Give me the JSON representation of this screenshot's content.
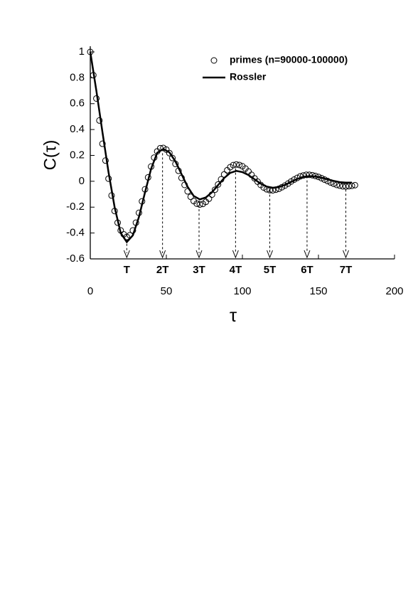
{
  "chart_data": {
    "type": "scatter-line",
    "x_label": "τ",
    "y_label": "C(τ)",
    "xlim": [
      0,
      200
    ],
    "ylim": [
      -0.6,
      1
    ],
    "xticks": [
      0,
      50,
      100,
      150,
      200
    ],
    "yticks": [
      1,
      0.8,
      0.6,
      0.4,
      0.2,
      0,
      -0.2,
      -0.4,
      -0.6
    ],
    "legend": "upper right",
    "series": [
      {
        "name": "primes (n=90000-100000)",
        "style": "circles",
        "color": "#000000",
        "x": [
          0,
          2,
          4,
          6,
          8,
          10,
          12,
          14,
          16,
          18,
          20,
          22,
          24,
          26,
          28,
          30,
          32,
          34,
          36,
          38,
          40,
          42,
          44,
          46,
          48,
          50,
          52,
          54,
          56,
          58,
          60,
          62,
          64,
          66,
          68,
          70,
          72,
          74,
          76,
          78,
          80,
          82,
          84,
          86,
          88,
          90,
          92,
          94,
          96,
          98,
          100,
          102,
          104,
          106,
          108,
          110,
          112,
          114,
          116,
          118,
          120,
          122,
          124,
          126,
          128,
          130,
          132,
          134,
          136,
          138,
          140,
          142,
          144,
          146,
          148,
          150,
          152,
          154,
          156,
          158,
          160,
          162,
          164,
          166,
          168,
          170,
          172,
          174
        ],
        "values": [
          1,
          0.82,
          0.64,
          0.47,
          0.29,
          0.16,
          0.02,
          -0.11,
          -0.23,
          -0.32,
          -0.38,
          -0.41,
          -0.43,
          -0.417,
          -0.38,
          -0.32,
          -0.244,
          -0.155,
          -0.062,
          0.03,
          0.114,
          0.183,
          0.231,
          0.256,
          0.258,
          0.245,
          0.218,
          0.18,
          0.134,
          0.081,
          0.026,
          -0.028,
          -0.078,
          -0.12,
          -0.153,
          -0.173,
          -0.18,
          -0.175,
          -0.159,
          -0.135,
          -0.103,
          -0.065,
          -0.025,
          0.015,
          0.053,
          0.085,
          0.109,
          0.125,
          0.13,
          0.126,
          0.116,
          0.098,
          0.076,
          0.05,
          0.023,
          -0.003,
          -0.028,
          -0.048,
          -0.062,
          -0.069,
          -0.07,
          -0.065,
          -0.058,
          -0.046,
          -0.033,
          -0.018,
          -0.002,
          0.013,
          0.026,
          0.038,
          0.045,
          0.05,
          0.05,
          0.047,
          0.041,
          0.034,
          0.024,
          0.013,
          0.002,
          -0.009,
          -0.019,
          -0.028,
          -0.034,
          -0.039,
          -0.04,
          -0.038,
          -0.035,
          -0.03
        ]
      },
      {
        "name": "Rossler",
        "style": "line",
        "color": "#000000",
        "x": [
          0,
          4,
          8,
          12,
          16,
          20,
          24,
          28,
          32,
          36,
          40,
          44,
          48,
          52,
          56,
          60,
          64,
          68,
          72,
          76,
          80,
          84,
          88,
          92,
          96,
          100,
          104,
          108,
          112,
          116,
          120,
          124,
          128,
          132,
          136,
          140,
          144,
          148,
          152,
          156,
          160,
          164,
          168,
          172
        ],
        "values": [
          1,
          0.7,
          0.38,
          0.07,
          -0.2,
          -0.4,
          -0.47,
          -0.418,
          -0.276,
          -0.085,
          0.097,
          0.22,
          0.25,
          0.224,
          0.153,
          0.055,
          -0.043,
          -0.114,
          -0.14,
          -0.125,
          -0.085,
          -0.03,
          0.025,
          0.065,
          0.08,
          0.071,
          0.048,
          0.015,
          -0.018,
          -0.041,
          -0.05,
          -0.044,
          -0.028,
          -0.005,
          0.018,
          0.034,
          0.04,
          0.037,
          0.028,
          0.015,
          0.003,
          -0.007,
          -0.01,
          -0.01
        ]
      }
    ],
    "annotations": [
      {
        "label": "T",
        "x": 24,
        "y": -0.45
      },
      {
        "label": "2T",
        "x": 47.5,
        "y": 0.25
      },
      {
        "label": "3T",
        "x": 71.5,
        "y": -0.15
      },
      {
        "label": "4T",
        "x": 95.5,
        "y": 0.1
      },
      {
        "label": "5T",
        "x": 118,
        "y": -0.07
      },
      {
        "label": "6T",
        "x": 142.5,
        "y": 0.04
      },
      {
        "label": "7T",
        "x": 168,
        "y": -0.03
      }
    ]
  }
}
